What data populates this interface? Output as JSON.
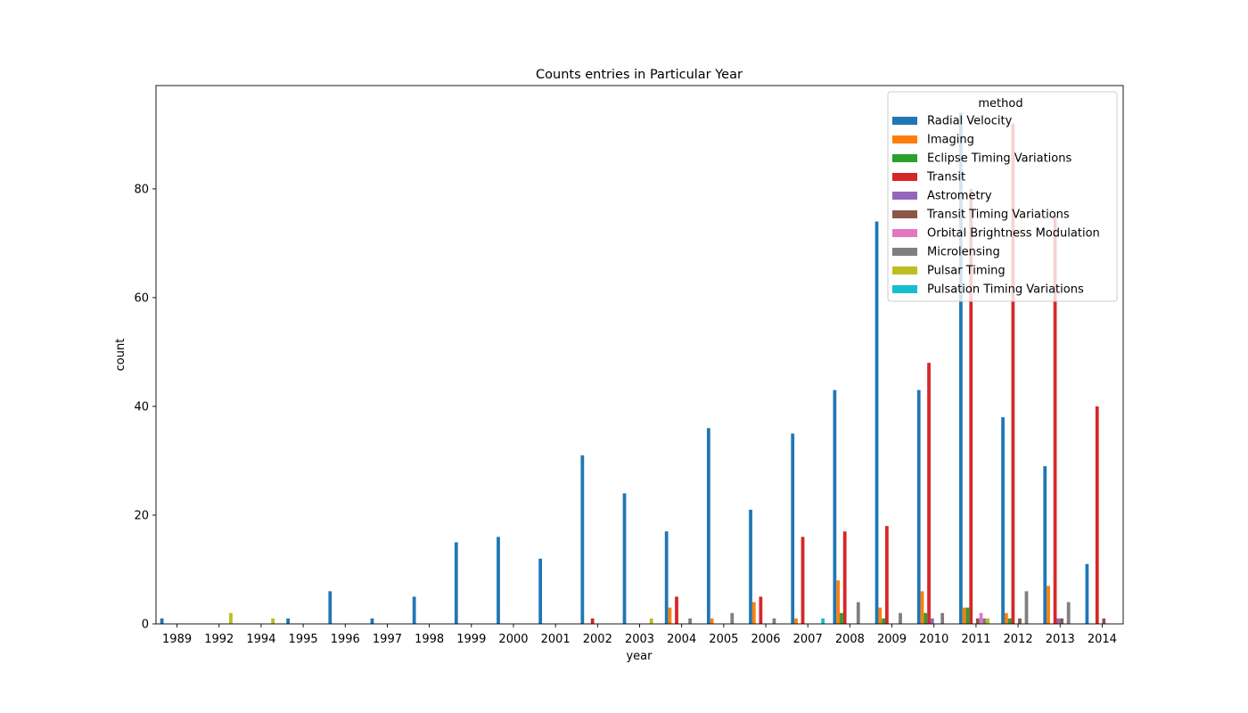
{
  "chart_data": {
    "type": "bar",
    "title": "Counts entries in Particular Year",
    "xlabel": "year",
    "ylabel": "count",
    "ylim": [
      0,
      99
    ],
    "yticks": [
      0,
      20,
      40,
      60,
      80
    ],
    "grid": false,
    "legend": {
      "title": "method",
      "placement": "top-right"
    },
    "categories": [
      "1989",
      "1992",
      "1994",
      "1995",
      "1996",
      "1997",
      "1998",
      "1999",
      "2000",
      "2001",
      "2002",
      "2003",
      "2004",
      "2005",
      "2006",
      "2007",
      "2008",
      "2009",
      "2010",
      "2011",
      "2012",
      "2013",
      "2014"
    ],
    "series": [
      {
        "name": "Radial Velocity",
        "color": "#1f77b4",
        "values": [
          1,
          0,
          0,
          1,
          6,
          1,
          5,
          15,
          16,
          12,
          31,
          24,
          17,
          36,
          21,
          35,
          43,
          74,
          43,
          94,
          38,
          29,
          11
        ]
      },
      {
        "name": "Imaging",
        "color": "#ff7f0e",
        "values": [
          0,
          0,
          0,
          0,
          0,
          0,
          0,
          0,
          0,
          0,
          0,
          0,
          3,
          1,
          4,
          1,
          8,
          3,
          6,
          3,
          2,
          7,
          0
        ]
      },
      {
        "name": "Eclipse Timing Variations",
        "color": "#2ca02c",
        "values": [
          0,
          0,
          0,
          0,
          0,
          0,
          0,
          0,
          0,
          0,
          0,
          0,
          0,
          0,
          0,
          0,
          2,
          1,
          2,
          3,
          1,
          0,
          0
        ]
      },
      {
        "name": "Transit",
        "color": "#d62728",
        "values": [
          0,
          0,
          0,
          0,
          0,
          0,
          0,
          0,
          0,
          0,
          1,
          0,
          5,
          0,
          5,
          16,
          17,
          18,
          48,
          80,
          92,
          75,
          40
        ]
      },
      {
        "name": "Astrometry",
        "color": "#9467bd",
        "values": [
          0,
          0,
          0,
          0,
          0,
          0,
          0,
          0,
          0,
          0,
          0,
          0,
          0,
          0,
          0,
          0,
          0,
          0,
          1,
          0,
          0,
          1,
          0
        ]
      },
      {
        "name": "Transit Timing Variations",
        "color": "#8c564b",
        "values": [
          0,
          0,
          0,
          0,
          0,
          0,
          0,
          0,
          0,
          0,
          0,
          0,
          0,
          0,
          0,
          0,
          0,
          0,
          0,
          1,
          1,
          1,
          1
        ]
      },
      {
        "name": "Orbital Brightness Modulation",
        "color": "#e377c2",
        "values": [
          0,
          0,
          0,
          0,
          0,
          0,
          0,
          0,
          0,
          0,
          0,
          0,
          0,
          0,
          0,
          0,
          0,
          0,
          0,
          2,
          0,
          0,
          0
        ]
      },
      {
        "name": "Microlensing",
        "color": "#7f7f7f",
        "values": [
          0,
          0,
          0,
          0,
          0,
          0,
          0,
          0,
          0,
          0,
          0,
          0,
          1,
          2,
          1,
          0,
          4,
          2,
          2,
          1,
          6,
          4,
          0
        ]
      },
      {
        "name": "Pulsar Timing",
        "color": "#bcbd22",
        "values": [
          0,
          2,
          1,
          0,
          0,
          0,
          0,
          0,
          0,
          0,
          0,
          1,
          0,
          0,
          0,
          0,
          0,
          0,
          0,
          1,
          0,
          0,
          0
        ]
      },
      {
        "name": "Pulsation Timing Variations",
        "color": "#17becf",
        "values": [
          0,
          0,
          0,
          0,
          0,
          0,
          0,
          0,
          0,
          0,
          0,
          0,
          0,
          0,
          0,
          1,
          0,
          0,
          0,
          0,
          0,
          0,
          0
        ]
      }
    ]
  }
}
